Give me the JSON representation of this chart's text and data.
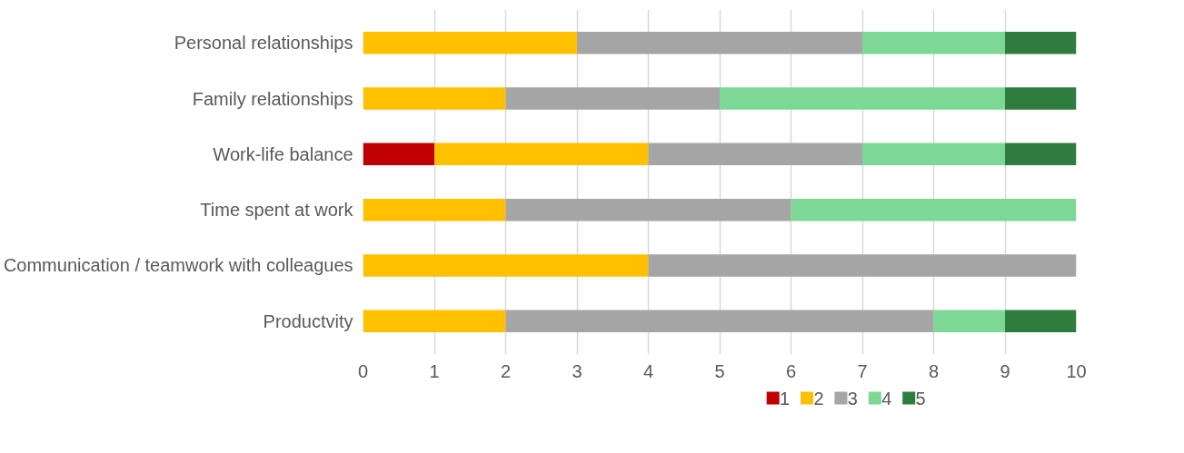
{
  "chart_data": {
    "type": "bar",
    "orientation": "horizontal",
    "stacked": true,
    "categories": [
      "Personal relationships",
      "Family relationships",
      "Work-life balance",
      "Time spent at work",
      "Communication / teamwork with colleagues",
      "Productvity"
    ],
    "series": [
      {
        "name": "1",
        "color": "#c00000",
        "values": [
          0,
          0,
          1,
          0,
          0,
          0
        ]
      },
      {
        "name": "2",
        "color": "#ffc000",
        "values": [
          3,
          2,
          3,
          2,
          4,
          2
        ]
      },
      {
        "name": "3",
        "color": "#a5a5a5",
        "values": [
          4,
          3,
          3,
          4,
          6,
          6
        ]
      },
      {
        "name": "4",
        "color": "#7dd895",
        "values": [
          2,
          4,
          2,
          4,
          0,
          1
        ]
      },
      {
        "name": "5",
        "color": "#2e7d3f",
        "values": [
          1,
          1,
          1,
          0,
          0,
          1
        ]
      }
    ],
    "xlim": [
      0,
      10
    ],
    "xticks": [
      0,
      1,
      2,
      3,
      4,
      5,
      6,
      7,
      8,
      9,
      10
    ],
    "grid": "x",
    "legend": "bottom"
  }
}
